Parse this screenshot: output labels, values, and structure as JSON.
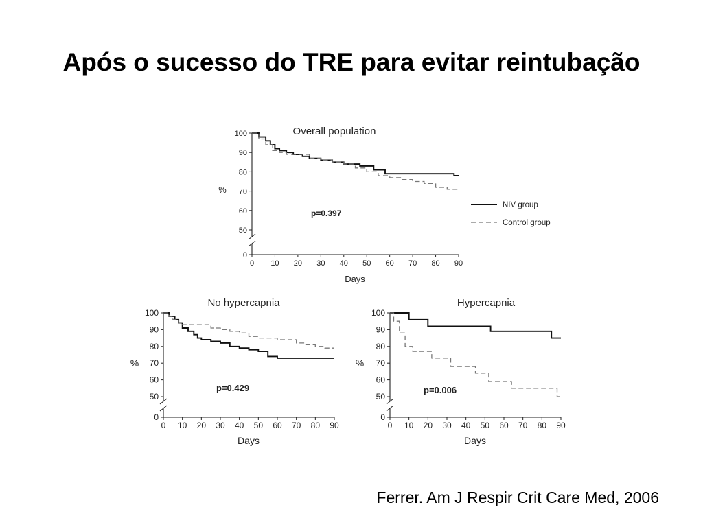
{
  "slide": {
    "title": "Após o sucesso do TRE para evitar reintubação",
    "citation": "Ferrer. Am J Respir Crit Care Med, 2006"
  },
  "legend": {
    "niv": "NIV group",
    "control": "Control group"
  },
  "colors": {
    "niv": "#111111",
    "control": "#777777"
  },
  "chart_data": [
    {
      "type": "line",
      "title": "Overall population",
      "xlabel": "Days",
      "ylabel": "%",
      "annotation": "p=0.397",
      "xticks": [
        0,
        10,
        20,
        30,
        40,
        50,
        60,
        70,
        80,
        90
      ],
      "yticks": [
        0,
        50,
        60,
        70,
        80,
        90,
        100
      ],
      "xlim": [
        0,
        90
      ],
      "ylim": [
        0,
        100
      ],
      "axis_break": true,
      "legend_position": "right",
      "series": [
        {
          "name": "NIV group",
          "style": "solid",
          "x": [
            0,
            3,
            6,
            8,
            10,
            12,
            15,
            18,
            22,
            25,
            30,
            35,
            40,
            47,
            53,
            58,
            65,
            75,
            85,
            88,
            90
          ],
          "y": [
            100,
            98,
            96,
            94,
            92,
            91,
            90,
            89,
            88,
            87,
            86,
            85,
            84,
            83,
            81,
            79,
            79,
            79,
            79,
            78,
            78
          ]
        },
        {
          "name": "Control group",
          "style": "dashed",
          "x": [
            0,
            3,
            6,
            9,
            12,
            15,
            20,
            25,
            30,
            35,
            40,
            45,
            50,
            55,
            60,
            65,
            70,
            75,
            80,
            85,
            88,
            90
          ],
          "y": [
            100,
            97,
            94,
            91,
            90,
            89,
            89,
            87,
            86,
            85,
            84,
            82,
            80,
            78,
            77,
            76,
            75,
            74,
            72,
            71,
            71,
            71
          ]
        }
      ]
    },
    {
      "type": "line",
      "title": "No hypercapnia",
      "xlabel": "Days",
      "ylabel": "%",
      "annotation": "p=0.429",
      "xticks": [
        0,
        10,
        20,
        30,
        40,
        50,
        60,
        70,
        80,
        90
      ],
      "yticks": [
        0,
        50,
        60,
        70,
        80,
        90,
        100
      ],
      "xlim": [
        0,
        90
      ],
      "ylim": [
        0,
        100
      ],
      "axis_break": true,
      "series": [
        {
          "name": "NIV group",
          "style": "solid",
          "x": [
            0,
            3,
            6,
            8,
            10,
            13,
            16,
            18,
            20,
            25,
            30,
            35,
            40,
            45,
            50,
            55,
            60,
            70,
            80,
            90
          ],
          "y": [
            100,
            98,
            96,
            94,
            91,
            89,
            87,
            85,
            84,
            83,
            82,
            80,
            79,
            78,
            77,
            74,
            73,
            73,
            73,
            73
          ]
        },
        {
          "name": "Control group",
          "style": "dashed",
          "x": [
            0,
            3,
            5,
            8,
            10,
            15,
            20,
            25,
            30,
            35,
            40,
            45,
            50,
            55,
            60,
            70,
            75,
            80,
            85,
            90
          ],
          "y": [
            100,
            98,
            96,
            94,
            93,
            93,
            93,
            91,
            90,
            89,
            88,
            86,
            85,
            85,
            84,
            82,
            81,
            80,
            79,
            79
          ]
        }
      ]
    },
    {
      "type": "line",
      "title": "Hypercapnia",
      "xlabel": "Days",
      "ylabel": "%",
      "annotation": "p=0.006",
      "xticks": [
        0,
        10,
        20,
        30,
        40,
        50,
        60,
        70,
        80,
        90
      ],
      "yticks": [
        0,
        50,
        60,
        70,
        80,
        90,
        100
      ],
      "xlim": [
        0,
        90
      ],
      "ylim": [
        0,
        100
      ],
      "axis_break": true,
      "series": [
        {
          "name": "NIV group",
          "style": "solid",
          "x": [
            0,
            10,
            20,
            30,
            40,
            53,
            60,
            70,
            80,
            85,
            90
          ],
          "y": [
            100,
            96,
            92,
            92,
            92,
            89,
            89,
            89,
            89,
            85,
            85
          ]
        },
        {
          "name": "Control group",
          "style": "dashed",
          "x": [
            0,
            2,
            5,
            8,
            12,
            16,
            22,
            27,
            32,
            38,
            45,
            52,
            58,
            64,
            70,
            80,
            88,
            90
          ],
          "y": [
            100,
            95,
            88,
            80,
            77,
            77,
            73,
            73,
            68,
            68,
            64,
            59,
            59,
            55,
            55,
            55,
            50,
            50
          ]
        }
      ]
    }
  ]
}
